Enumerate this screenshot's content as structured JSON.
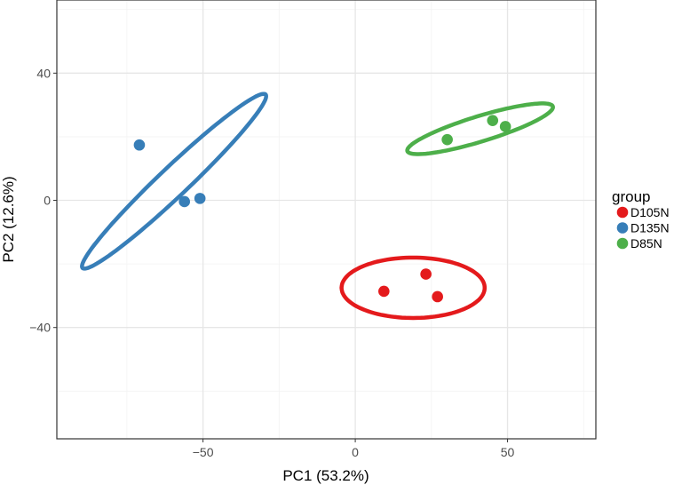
{
  "chart_data": {
    "type": "scatter",
    "title": "",
    "xlabel": "PC1 (53.2%)",
    "ylabel": "PC2 (12.6%)",
    "xlim": [
      -98,
      79
    ],
    "ylim": [
      -75,
      63
    ],
    "x_major_ticks": [
      -50,
      0,
      50
    ],
    "x_tick_labels": [
      "−50",
      "0",
      "50"
    ],
    "y_major_ticks": [
      -40,
      0,
      40
    ],
    "y_tick_labels": [
      "−40",
      "0",
      "40"
    ],
    "x_minor_ticks": [
      -75,
      -25,
      25,
      75
    ],
    "y_minor_ticks": [
      -60,
      -20,
      20,
      60
    ],
    "grid": true,
    "legend": {
      "title": "group",
      "position": "right"
    },
    "series": [
      {
        "name": "D105N",
        "color": "#E41A1C",
        "points": [
          {
            "x": 9.4,
            "y": -28.6
          },
          {
            "x": 23.2,
            "y": -23.2
          },
          {
            "x": 27.0,
            "y": -30.3
          }
        ],
        "ellipse": {
          "cx": 19.0,
          "cy": -27.5,
          "rx": 23.5,
          "ry": 9.5,
          "angle_deg": 0
        }
      },
      {
        "name": "D135N",
        "color": "#377EB8",
        "points": [
          {
            "x": -70.9,
            "y": 17.4
          },
          {
            "x": -56.1,
            "y": -0.4
          },
          {
            "x": -51.0,
            "y": 0.6
          }
        ],
        "ellipse": {
          "cx": -59.5,
          "cy": 6.0,
          "rx": 40.6,
          "ry": 4.7,
          "angle_deg": 42.2
        }
      },
      {
        "name": "D85N",
        "color": "#4DAF4A",
        "points": [
          {
            "x": 30.2,
            "y": 19.1
          },
          {
            "x": 45.1,
            "y": 25.1
          },
          {
            "x": 49.3,
            "y": 23.2
          }
        ],
        "ellipse": {
          "cx": 41.0,
          "cy": 22.5,
          "rx": 24.9,
          "ry": 4.0,
          "angle_deg": 16.3
        }
      }
    ],
    "colors": {
      "panel_border": "#333333",
      "grid_major": "#e6e6e6",
      "grid_minor": "#f3f3f3",
      "tick_text": "#4d4d4d",
      "axis_title_text": "#000000"
    }
  }
}
